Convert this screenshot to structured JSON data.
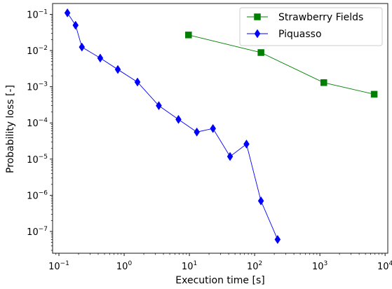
{
  "chart_data": {
    "type": "line",
    "xlabel": "Execution time [s]",
    "ylabel": "Probability loss [-]",
    "xscale": "log",
    "yscale": "log",
    "xlim": [
      0.08,
      11000
    ],
    "ylim": [
      2.5e-08,
      0.2
    ],
    "grid": false,
    "legend_position": "top-right",
    "x_ticks": [
      {
        "value": 0.1,
        "base": "10",
        "exp": "−1"
      },
      {
        "value": 1,
        "base": "10",
        "exp": "0"
      },
      {
        "value": 10,
        "base": "10",
        "exp": "1"
      },
      {
        "value": 100,
        "base": "10",
        "exp": "2"
      },
      {
        "value": 1000,
        "base": "10",
        "exp": "3"
      },
      {
        "value": 10000,
        "base": "10",
        "exp": "4"
      }
    ],
    "y_ticks": [
      {
        "value": 0.1,
        "base": "10",
        "exp": "−1"
      },
      {
        "value": 0.01,
        "base": "10",
        "exp": "−2"
      },
      {
        "value": 0.001,
        "base": "10",
        "exp": "−3"
      },
      {
        "value": 0.0001,
        "base": "10",
        "exp": "−4"
      },
      {
        "value": 1e-05,
        "base": "10",
        "exp": "−5"
      },
      {
        "value": 1e-06,
        "base": "10",
        "exp": "−6"
      },
      {
        "value": 1e-07,
        "base": "10",
        "exp": "−7"
      }
    ],
    "series": [
      {
        "name": "Strawberry Fields",
        "color": "#008000",
        "marker": "square",
        "x": [
          9.7,
          125,
          1150,
          6800
        ],
        "y": [
          0.027,
          0.0088,
          0.0013,
          0.00062
        ]
      },
      {
        "name": "Piquasso",
        "color": "#0000ff",
        "marker": "diamond",
        "x": [
          0.135,
          0.18,
          0.225,
          0.43,
          0.8,
          1.6,
          3.4,
          6.8,
          13,
          23,
          42,
          75,
          125,
          225
        ],
        "y": [
          0.11,
          0.05,
          0.0125,
          0.0062,
          0.003,
          0.00135,
          0.0003,
          0.000125,
          5.6e-05,
          7e-05,
          1.18e-05,
          2.6e-05,
          7e-07,
          6e-08
        ]
      }
    ]
  }
}
